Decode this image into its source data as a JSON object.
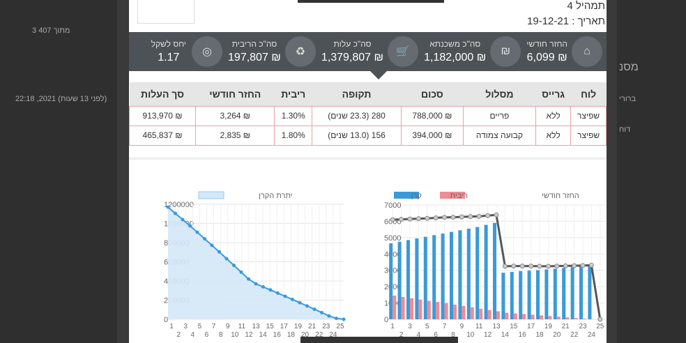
{
  "background": {
    "pager": "3 מתוך 407",
    "timestamp": "22:18 ,2021 (לפני 13 שעות)",
    "side1": "מסנ",
    "side2": "ברורי",
    "side3": "דוח"
  },
  "header": {
    "title": "תמהיל 4",
    "date": "תאריך : 19-12-21"
  },
  "stats": [
    {
      "label": "החזר חודשי",
      "value": "₪ 6,099",
      "icon": "house-icon"
    },
    {
      "label": "סה\"כ משכנתא",
      "value": "₪ 1,182,000",
      "icon": "coins-icon"
    },
    {
      "label": "סה\"כ עלות",
      "value": "₪ 1,379,807",
      "icon": "cart-icon"
    },
    {
      "label": "סה\"כ הריבית",
      "value": "₪ 197,807",
      "icon": "recycle-icon"
    },
    {
      "label": "יחס לשקל",
      "value": "1.17",
      "icon": "coin-icon"
    }
  ],
  "table": {
    "headers": [
      "לוח",
      "גרייס",
      "מסלול",
      "סכום",
      "תקופה",
      "ריבית",
      "החזר חודשי",
      "סך העלות"
    ],
    "rows": [
      [
        "שפיצר",
        "ללא",
        "פריים",
        "₪ 788,000",
        "280 (23.3 שנים)",
        "1.30%",
        "₪ 3,264",
        "₪ 913,970"
      ],
      [
        "שפיצר",
        "ללא",
        "קבועה צמודה",
        "₪ 394,000",
        "156 (13.0 שנים)",
        "1.80%",
        "₪ 2,835",
        "₪ 465,837"
      ]
    ]
  },
  "chart_data": [
    {
      "type": "area",
      "legend": [
        "יתרת הקרן"
      ],
      "x": [
        1,
        2,
        3,
        4,
        5,
        6,
        7,
        8,
        9,
        10,
        11,
        12,
        13,
        14,
        15,
        16,
        17,
        18,
        19,
        20,
        21,
        22,
        23,
        24,
        25
      ],
      "ylim": [
        0,
        1200000
      ],
      "yticks": [
        0,
        200000,
        400000,
        600000,
        800000,
        1000000,
        1200000
      ],
      "color": "#3a9ad9",
      "values": [
        1170000,
        1105000,
        1040000,
        975000,
        908000,
        840000,
        772000,
        703000,
        633000,
        563000,
        492000,
        420000,
        370000,
        338000,
        306000,
        273000,
        240000,
        207000,
        173000,
        139000,
        105000,
        70000,
        35000,
        10000,
        0
      ]
    },
    {
      "type": "bar",
      "legend": [
        "החזר חודשי",
        "ריבית",
        "קרן"
      ],
      "x": [
        1,
        2,
        3,
        4,
        5,
        6,
        7,
        8,
        9,
        10,
        11,
        12,
        13,
        14,
        15,
        16,
        17,
        18,
        19,
        20,
        21,
        22,
        23,
        24,
        25
      ],
      "ylim": [
        0,
        7000
      ],
      "yticks": [
        0,
        1000,
        2000,
        3000,
        4000,
        5000,
        6000,
        7000
      ],
      "colors": {
        "principal": "#3a9ad9",
        "interest": "#f08c94",
        "payment": "#555555"
      },
      "series": [
        {
          "name": "קרן",
          "values": [
            4650,
            4750,
            4850,
            4950,
            5050,
            5150,
            5250,
            5350,
            5450,
            5550,
            5650,
            5780,
            5900,
            2850,
            2900,
            2950,
            2980,
            3010,
            3050,
            3100,
            3150,
            3200,
            3250,
            3300,
            0
          ]
        },
        {
          "name": "ריבית",
          "values": [
            1450,
            1370,
            1290,
            1210,
            1130,
            1060,
            990,
            900,
            820,
            740,
            650,
            570,
            490,
            400,
            360,
            320,
            280,
            240,
            200,
            160,
            120,
            80,
            40,
            10,
            0
          ]
        },
        {
          "name": "החזר חודשי",
          "values": [
            6100,
            6120,
            6140,
            6160,
            6180,
            6210,
            6240,
            6250,
            6270,
            6290,
            6300,
            6350,
            6390,
            3250,
            3260,
            3260,
            3260,
            3250,
            3250,
            3260,
            3270,
            3280,
            3290,
            3310,
            0
          ]
        }
      ]
    }
  ]
}
